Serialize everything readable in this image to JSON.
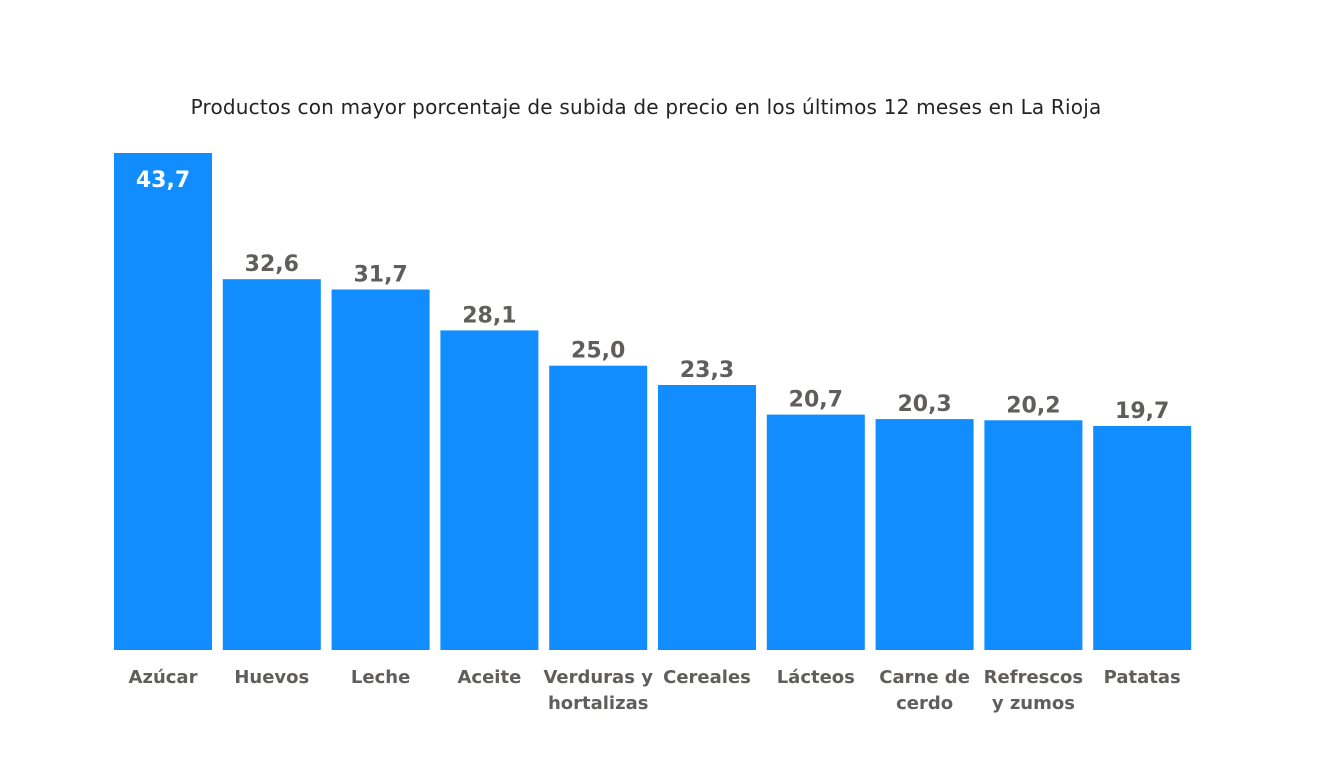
{
  "chart_data": {
    "type": "bar",
    "title": "Productos con mayor porcentaje de subida de precio en los últimos 12 meses en La Rioja",
    "categories": [
      [
        "Azúcar"
      ],
      [
        "Huevos"
      ],
      [
        "Leche"
      ],
      [
        "Aceite"
      ],
      [
        "Verduras y",
        "hortalizas"
      ],
      [
        "Cereales"
      ],
      [
        "Lácteos"
      ],
      [
        "Carne de",
        "cerdo"
      ],
      [
        "Refrescos",
        "y zumos"
      ],
      [
        "Patatas"
      ]
    ],
    "values": [
      43.7,
      32.6,
      31.7,
      28.1,
      25.0,
      23.3,
      20.7,
      20.3,
      20.2,
      19.7
    ],
    "value_labels": [
      "43,7",
      "32,6",
      "31,7",
      "28,1",
      "25,0",
      "23,3",
      "20,7",
      "20,3",
      "20,2",
      "19,7"
    ],
    "ylim": [
      0,
      43.7
    ],
    "grid": false,
    "legend": "none",
    "colors": {
      "bar": "#118dff",
      "label_outside": "#605e5c",
      "label_inside": "#ffffff"
    }
  }
}
